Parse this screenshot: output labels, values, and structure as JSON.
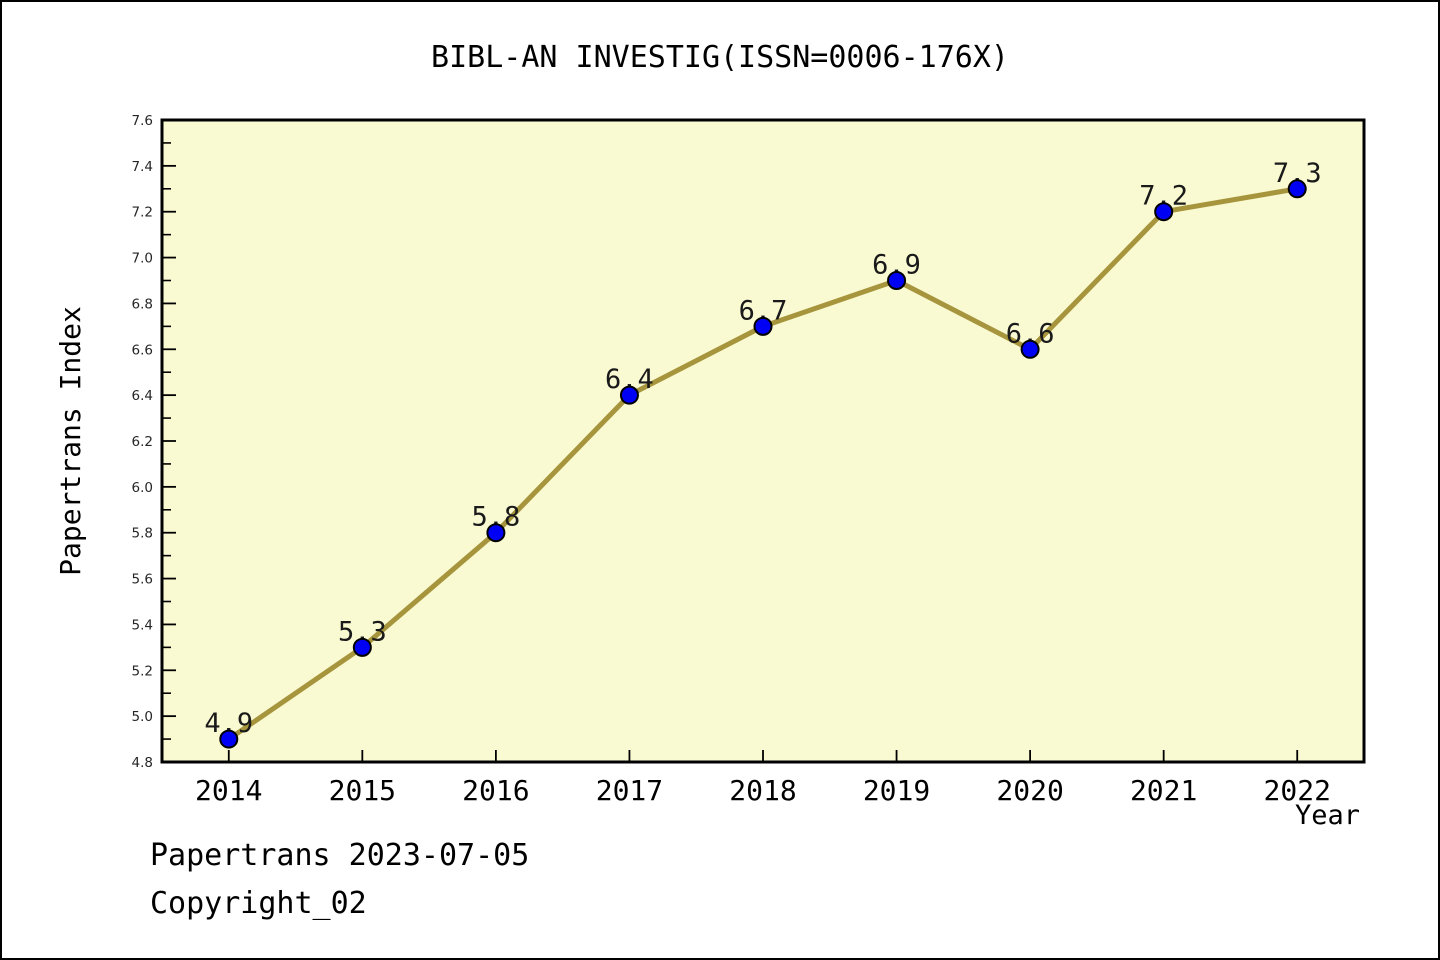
{
  "page": {
    "title": "BIBL-AN INVESTIG(ISSN=0006-176X)"
  },
  "footer": {
    "line1": "Papertrans 2023-07-05",
    "line2": "Copyright_02"
  },
  "chart_data": {
    "type": "line",
    "title": "BIBL-AN INVESTIG(ISSN=0006-176X)",
    "xlabel": "Year",
    "ylabel": "Papertrans Index",
    "x": [
      2014,
      2015,
      2016,
      2017,
      2018,
      2019,
      2020,
      2021,
      2022
    ],
    "values": [
      4.9,
      5.3,
      5.8,
      6.4,
      6.7,
      6.9,
      6.6,
      7.2,
      7.3
    ],
    "point_labels": [
      "4.9",
      "5.3",
      "5.8",
      "6.4",
      "6.7",
      "6.9",
      "6.6",
      "7.2",
      "7.3"
    ],
    "series_name": "Papertrans Index",
    "xlim": [
      2013.5,
      2022.5
    ],
    "ylim": [
      4.8,
      7.6
    ],
    "xticks": [
      2014,
      2015,
      2016,
      2017,
      2018,
      2019,
      2020,
      2021,
      2022
    ],
    "xtick_labels": [
      "2014",
      "2015",
      "2016",
      "2017",
      "2018",
      "2019",
      "2020",
      "2021",
      "2022"
    ],
    "yticks": [
      4.8,
      5.0,
      5.2,
      5.4,
      5.6,
      5.8,
      6.0,
      6.2,
      6.4,
      6.6,
      6.8,
      7.0,
      7.2,
      7.4,
      7.6
    ],
    "ytick_labels": [
      "4.8",
      "5.0",
      "5.2",
      "5.4",
      "5.6",
      "5.8",
      "6.0",
      "6.2",
      "6.4",
      "6.6",
      "6.8",
      "7.0",
      "7.2",
      "7.4",
      "7.6"
    ],
    "yminor_step": 0.1,
    "grid": false,
    "legend": "none",
    "tick_direction": "in",
    "colors": {
      "plot_bg": "#FAFAD2",
      "line": "#A6953C",
      "marker_fill": "#0000F5",
      "marker_edge": "#000000",
      "frame": "#000000",
      "tick_label": "#262626",
      "annotation": "#1a1a1a"
    },
    "marker": {
      "shape": "circle",
      "radius": 8.5
    },
    "line_width": 5
  }
}
